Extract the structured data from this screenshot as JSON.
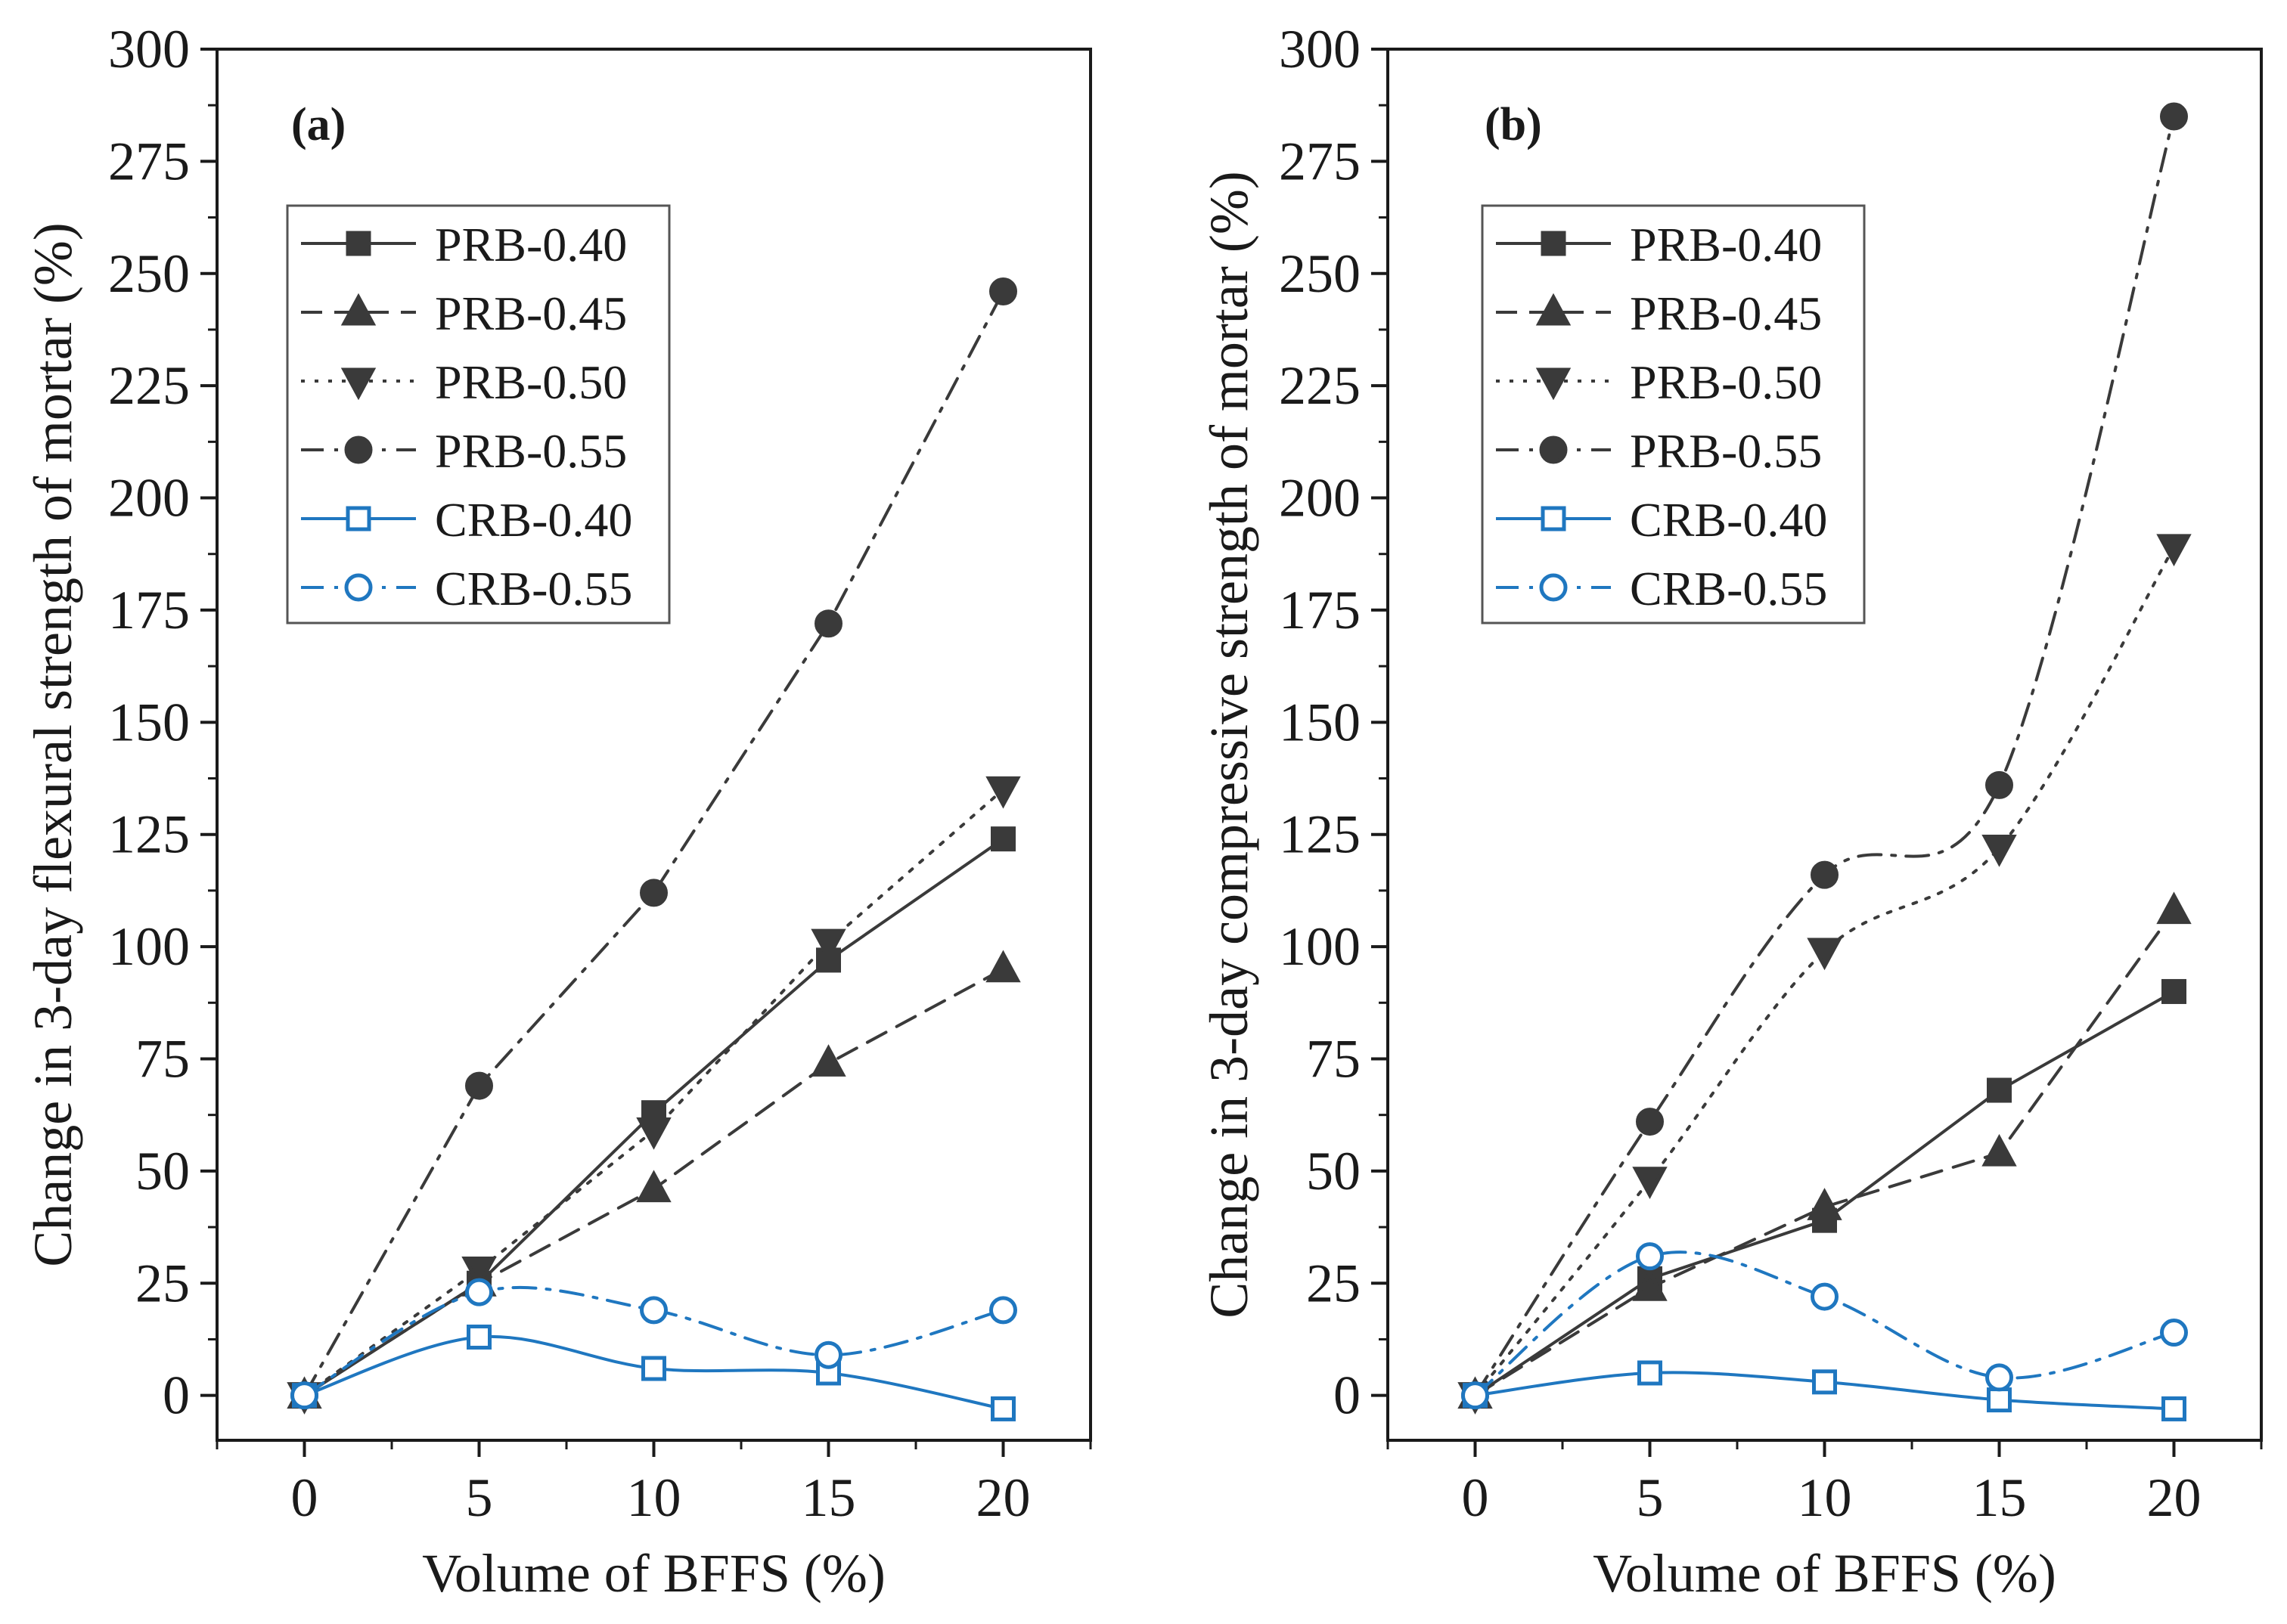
{
  "chart_data": [
    {
      "type": "line",
      "panel_label": "(a)",
      "xlabel": "Volume of BFFS (%)",
      "ylabel": "Change in 3-day flexural strength of mortar (%)",
      "xlim": [
        -2.5,
        22.5
      ],
      "ylim": [
        -10,
        300
      ],
      "xticks": [
        0,
        5,
        10,
        15,
        20
      ],
      "yticks": [
        0,
        25,
        50,
        75,
        100,
        125,
        150,
        175,
        200,
        225,
        250,
        275,
        300
      ],
      "legend": "top-left",
      "x": [
        0,
        5,
        10,
        15,
        20
      ],
      "series": [
        {
          "name": "PRB-0.40",
          "color": "#3a3a3a",
          "marker": "square",
          "filled": true,
          "dash": "solid",
          "values": [
            0,
            25,
            63,
            97,
            124
          ]
        },
        {
          "name": "PRB-0.45",
          "color": "#3a3a3a",
          "marker": "triangle-up",
          "filled": true,
          "dash": "dash",
          "values": [
            0,
            25,
            46,
            74,
            95
          ]
        },
        {
          "name": "PRB-0.50",
          "color": "#3a3a3a",
          "marker": "triangle-down",
          "filled": true,
          "dash": "dot",
          "values": [
            0,
            28,
            59,
            101,
            135
          ]
        },
        {
          "name": "PRB-0.55",
          "color": "#3a3a3a",
          "marker": "circle",
          "filled": true,
          "dash": "dashdot",
          "values": [
            0,
            69,
            112,
            172,
            246
          ]
        },
        {
          "name": "CRB-0.40",
          "color": "#1f77c0",
          "marker": "square",
          "filled": false,
          "dash": "solid",
          "values": [
            0,
            13,
            6,
            5,
            -3
          ]
        },
        {
          "name": "CRB-0.55",
          "color": "#1f77c0",
          "marker": "circle",
          "filled": false,
          "dash": "dashdot",
          "values": [
            0,
            23,
            19,
            9,
            19
          ]
        }
      ]
    },
    {
      "type": "line",
      "panel_label": "(b)",
      "xlabel": "Volume of BFFS (%)",
      "ylabel": "Change in 3-day compressive strength of mortar (%)",
      "xlim": [
        -2.5,
        22.5
      ],
      "ylim": [
        -10,
        300
      ],
      "xticks": [
        0,
        5,
        10,
        15,
        20
      ],
      "yticks": [
        0,
        25,
        50,
        75,
        100,
        125,
        150,
        175,
        200,
        225,
        250,
        275,
        300
      ],
      "legend": "top-left",
      "x": [
        0,
        5,
        10,
        15,
        20
      ],
      "series": [
        {
          "name": "PRB-0.40",
          "color": "#3a3a3a",
          "marker": "square",
          "filled": true,
          "dash": "solid",
          "values": [
            0,
            26,
            39,
            68,
            90
          ]
        },
        {
          "name": "PRB-0.45",
          "color": "#3a3a3a",
          "marker": "triangle-up",
          "filled": true,
          "dash": "dash",
          "values": [
            0,
            24,
            42,
            54,
            108
          ]
        },
        {
          "name": "PRB-0.50",
          "color": "#3a3a3a",
          "marker": "triangle-down",
          "filled": true,
          "dash": "dot",
          "values": [
            0,
            48,
            99,
            122,
            189
          ]
        },
        {
          "name": "PRB-0.55",
          "color": "#3a3a3a",
          "marker": "circle",
          "filled": true,
          "dash": "dashdot",
          "values": [
            0,
            61,
            116,
            136,
            285
          ]
        },
        {
          "name": "CRB-0.40",
          "color": "#1f77c0",
          "marker": "square",
          "filled": false,
          "dash": "solid",
          "values": [
            0,
            5,
            3,
            -1,
            -3
          ]
        },
        {
          "name": "CRB-0.55",
          "color": "#1f77c0",
          "marker": "circle",
          "filled": false,
          "dash": "dashdot",
          "values": [
            0,
            31,
            22,
            4,
            14
          ]
        }
      ]
    }
  ]
}
